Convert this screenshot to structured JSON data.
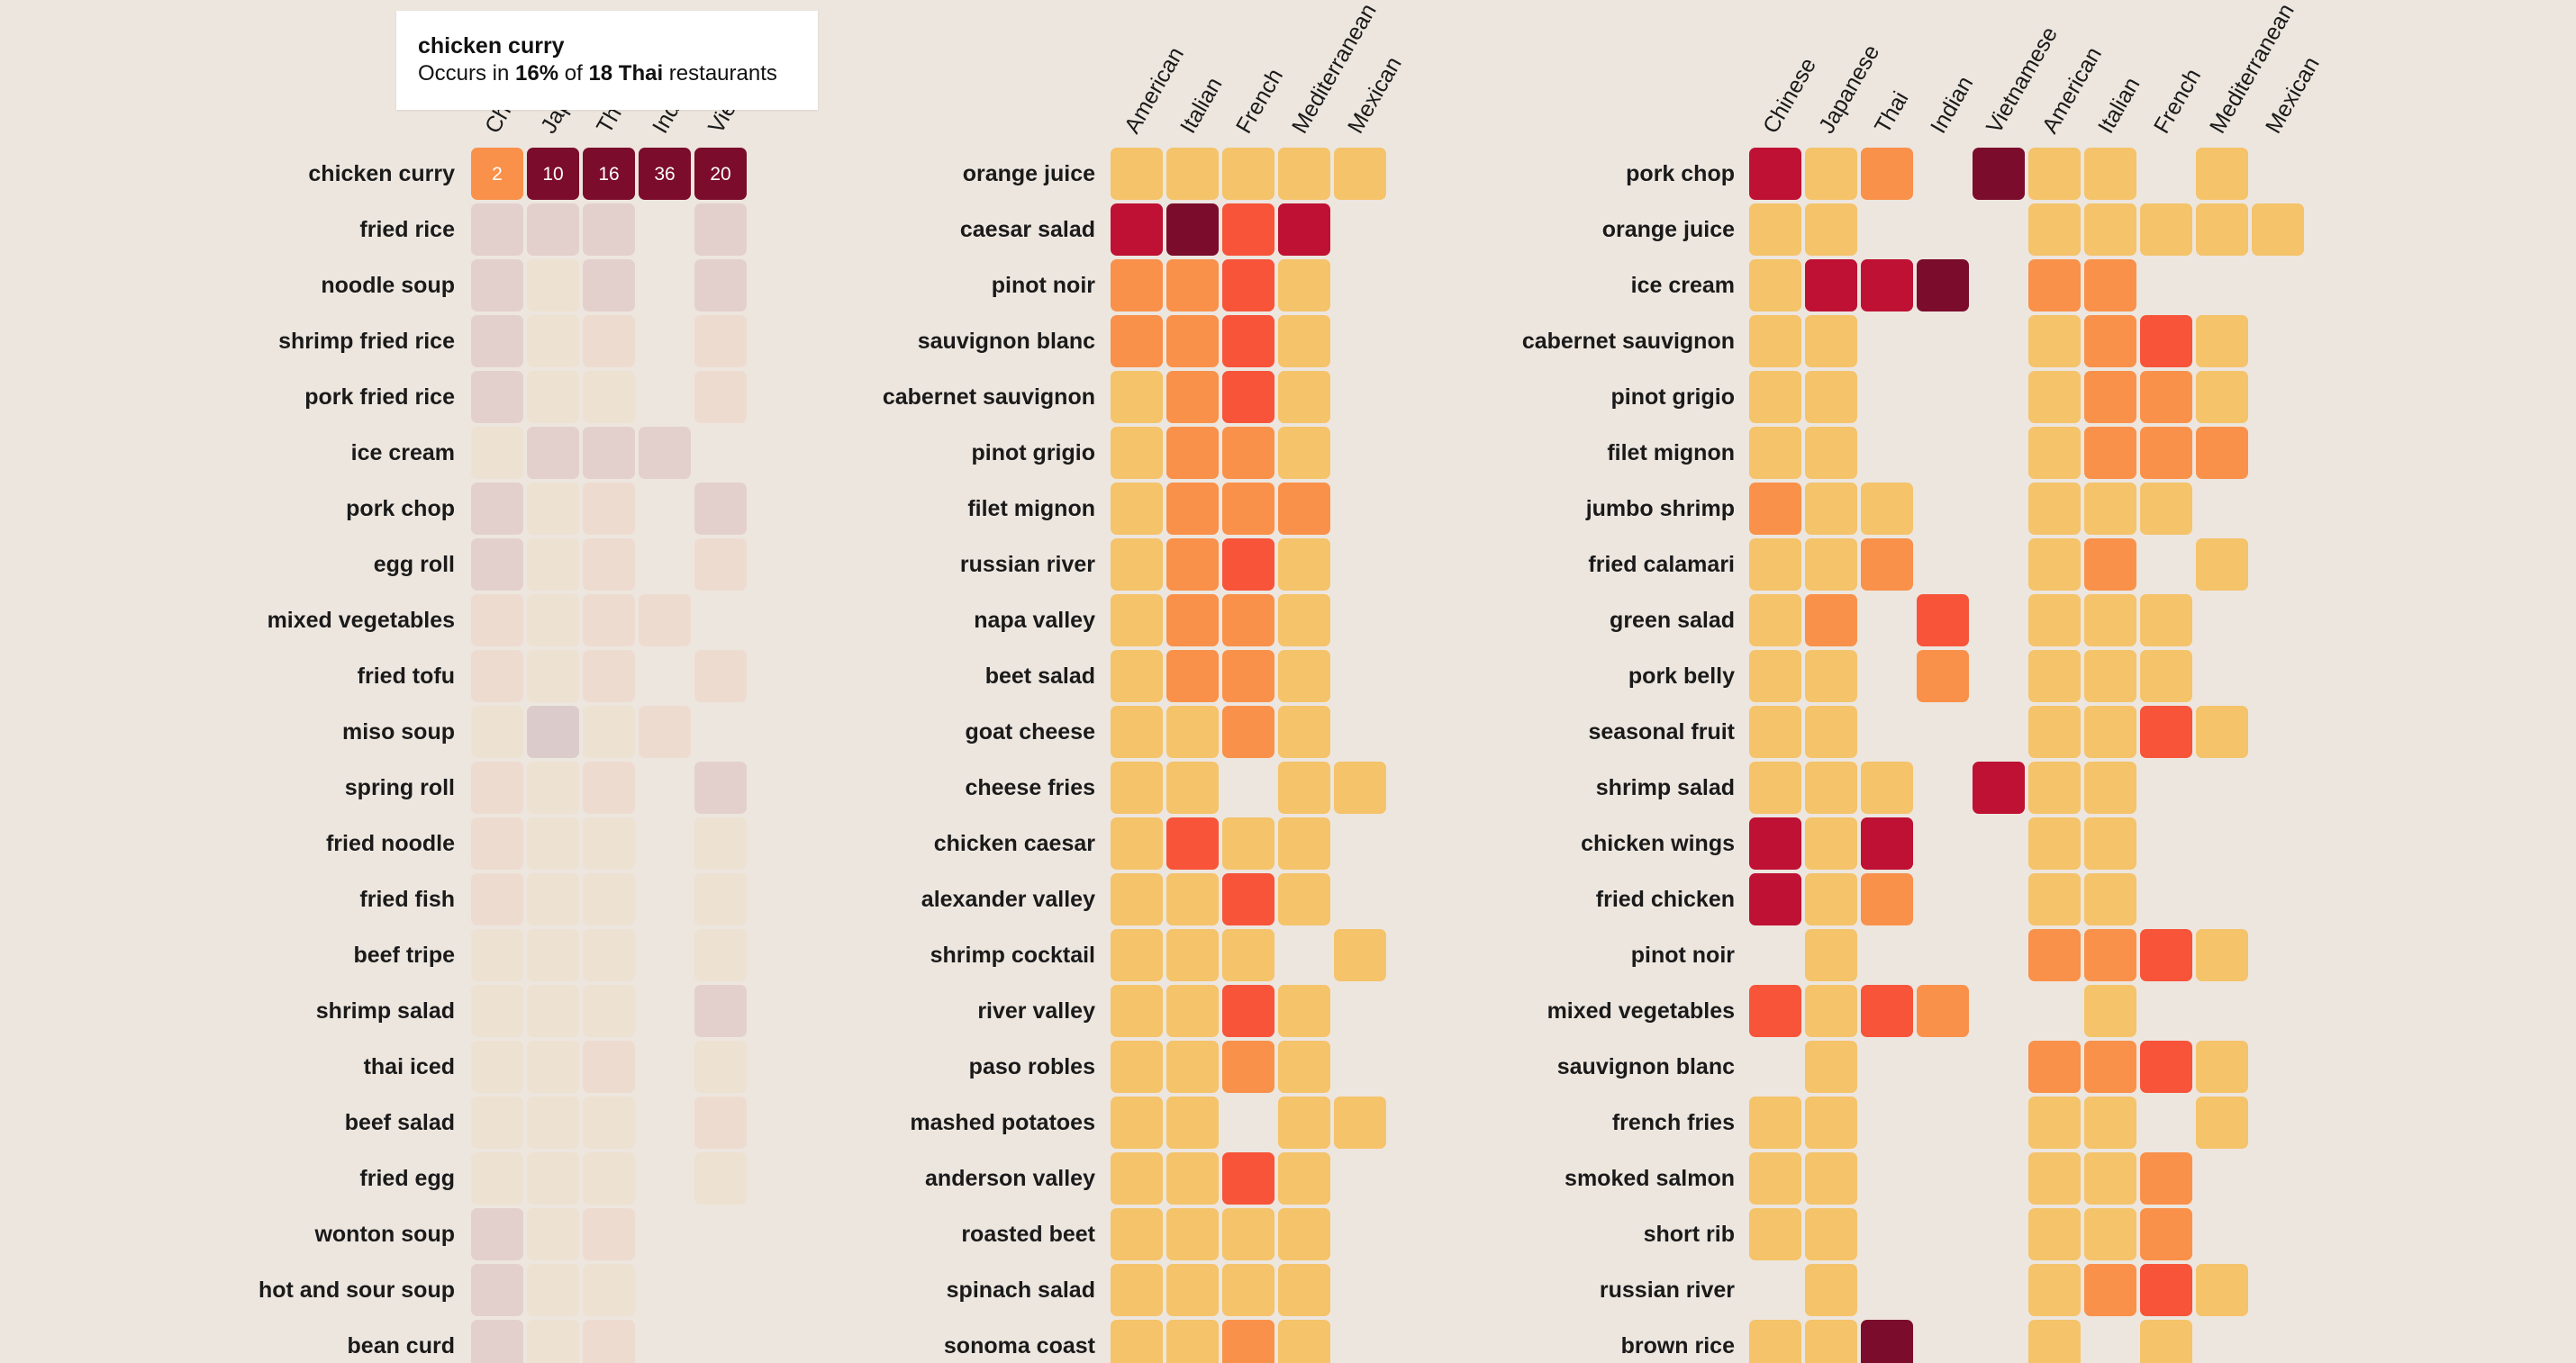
{
  "tooltip": {
    "title": "chicken curry",
    "prefix": "Occurs in ",
    "percent": "16%",
    "middle": " of ",
    "count": "18 Thai",
    "suffix": " restaurants"
  },
  "chart_data": [
    {
      "type": "heatmap",
      "columns": [
        "Chinese",
        "Japanese",
        "Thai",
        "Indian",
        "Vietnamese"
      ],
      "visible_column_labels": [
        "Ch",
        "Jap",
        "Th",
        "Ind",
        "Vie"
      ],
      "rows": [
        "chicken curry",
        "fried rice",
        "noodle soup",
        "shrimp fried rice",
        "pork fried rice",
        "ice cream",
        "pork chop",
        "egg roll",
        "mixed vegetables",
        "fried tofu",
        "miso soup",
        "spring roll",
        "fried noodle",
        "fried fish",
        "beef tripe",
        "shrimp salad",
        "thai iced",
        "beef salad",
        "fried egg",
        "wonton soup",
        "hot and sour soup",
        "bean curd"
      ],
      "cell_labels": [
        [
          "2",
          "10",
          "16",
          "36",
          "20"
        ]
      ],
      "values": [
        [
          2,
          10,
          16,
          36,
          20
        ],
        [
          3,
          3,
          3,
          null,
          3
        ],
        [
          3,
          1,
          3,
          null,
          3
        ],
        [
          3,
          1,
          2,
          null,
          2
        ],
        [
          3,
          1,
          1,
          null,
          2
        ],
        [
          1,
          3,
          3,
          3,
          null
        ],
        [
          3,
          1,
          2,
          null,
          3
        ],
        [
          3,
          1,
          2,
          null,
          2
        ],
        [
          2,
          1,
          2,
          2,
          null
        ],
        [
          2,
          1,
          2,
          null,
          2
        ],
        [
          1,
          4,
          1,
          2,
          null
        ],
        [
          2,
          1,
          2,
          null,
          3
        ],
        [
          2,
          1,
          1,
          null,
          1
        ],
        [
          2,
          1,
          1,
          null,
          1
        ],
        [
          1,
          1,
          1,
          null,
          1
        ],
        [
          1,
          1,
          1,
          null,
          3
        ],
        [
          1,
          1,
          2,
          null,
          1
        ],
        [
          1,
          1,
          1,
          null,
          2
        ],
        [
          1,
          1,
          1,
          null,
          1
        ],
        [
          3,
          1,
          2,
          null,
          null
        ],
        [
          3,
          1,
          1,
          null,
          null
        ],
        [
          3,
          1,
          2,
          null,
          null
        ]
      ],
      "dimmed": true
    },
    {
      "type": "heatmap",
      "columns": [
        "American",
        "Italian",
        "French",
        "Mediterranean",
        "Mexican"
      ],
      "rows": [
        "orange juice",
        "caesar salad",
        "pinot noir",
        "sauvignon blanc",
        "cabernet sauvignon",
        "pinot grigio",
        "filet mignon",
        "russian river",
        "napa valley",
        "beet salad",
        "goat cheese",
        "cheese fries",
        "chicken caesar",
        "alexander valley",
        "shrimp cocktail",
        "river valley",
        "paso robles",
        "mashed potatoes",
        "anderson valley",
        "roasted beet",
        "spinach salad",
        "sonoma coast"
      ],
      "values": [
        [
          1,
          1,
          1,
          1,
          1
        ],
        [
          4,
          5,
          3,
          4,
          null
        ],
        [
          2,
          2,
          3,
          1,
          null
        ],
        [
          2,
          2,
          3,
          1,
          null
        ],
        [
          1,
          2,
          3,
          1,
          null
        ],
        [
          1,
          2,
          2,
          1,
          null
        ],
        [
          1,
          2,
          2,
          2,
          null
        ],
        [
          1,
          2,
          3,
          1,
          null
        ],
        [
          1,
          2,
          2,
          1,
          null
        ],
        [
          1,
          2,
          2,
          1,
          null
        ],
        [
          1,
          1,
          2,
          1,
          null
        ],
        [
          1,
          1,
          null,
          1,
          1
        ],
        [
          1,
          3,
          1,
          1,
          null
        ],
        [
          1,
          1,
          3,
          1,
          null
        ],
        [
          1,
          1,
          1,
          null,
          1
        ],
        [
          1,
          1,
          3,
          1,
          null
        ],
        [
          1,
          1,
          2,
          1,
          null
        ],
        [
          1,
          1,
          null,
          1,
          1
        ],
        [
          1,
          1,
          3,
          1,
          null
        ],
        [
          1,
          1,
          1,
          1,
          null
        ],
        [
          1,
          1,
          1,
          1,
          null
        ],
        [
          1,
          1,
          2,
          1,
          null
        ]
      ],
      "dimmed": false
    },
    {
      "type": "heatmap",
      "columns": [
        "Chinese",
        "Japanese",
        "Thai",
        "Indian",
        "Vietnamese",
        "American",
        "Italian",
        "French",
        "Mediterranean",
        "Mexican"
      ],
      "rows": [
        "pork chop",
        "orange juice",
        "ice cream",
        "cabernet sauvignon",
        "pinot grigio",
        "filet mignon",
        "jumbo shrimp",
        "fried calamari",
        "green salad",
        "pork belly",
        "seasonal fruit",
        "shrimp salad",
        "chicken wings",
        "fried chicken",
        "pinot noir",
        "mixed vegetables",
        "sauvignon blanc",
        "french fries",
        "smoked salmon",
        "short rib",
        "russian river",
        "brown rice"
      ],
      "values": [
        [
          4,
          1,
          2,
          null,
          5,
          1,
          1,
          null,
          1,
          null
        ],
        [
          1,
          1,
          null,
          null,
          null,
          1,
          1,
          1,
          1,
          1
        ],
        [
          1,
          4,
          4,
          5,
          null,
          2,
          2,
          null,
          null,
          null
        ],
        [
          1,
          1,
          null,
          null,
          null,
          1,
          2,
          3,
          1,
          null
        ],
        [
          1,
          1,
          null,
          null,
          null,
          1,
          2,
          2,
          1,
          null
        ],
        [
          1,
          1,
          null,
          null,
          null,
          1,
          2,
          2,
          2,
          null
        ],
        [
          2,
          1,
          1,
          null,
          null,
          1,
          1,
          1,
          null,
          null
        ],
        [
          1,
          1,
          2,
          null,
          null,
          1,
          2,
          null,
          1,
          null
        ],
        [
          1,
          2,
          null,
          3,
          null,
          1,
          1,
          1,
          null,
          null
        ],
        [
          1,
          1,
          null,
          2,
          null,
          1,
          1,
          1,
          null,
          null
        ],
        [
          1,
          1,
          null,
          null,
          null,
          1,
          1,
          3,
          1,
          null
        ],
        [
          1,
          1,
          1,
          null,
          4,
          1,
          1,
          null,
          null,
          null
        ],
        [
          4,
          1,
          4,
          null,
          null,
          1,
          1,
          null,
          null,
          null
        ],
        [
          4,
          1,
          2,
          null,
          null,
          1,
          1,
          null,
          null,
          null
        ],
        [
          null,
          1,
          null,
          null,
          null,
          2,
          2,
          3,
          1,
          null
        ],
        [
          3,
          1,
          3,
          2,
          null,
          null,
          1,
          null,
          null,
          null
        ],
        [
          null,
          1,
          null,
          null,
          null,
          2,
          2,
          3,
          1,
          null
        ],
        [
          1,
          1,
          null,
          null,
          null,
          1,
          1,
          null,
          1,
          null
        ],
        [
          1,
          1,
          null,
          null,
          null,
          1,
          1,
          2,
          null,
          null
        ],
        [
          1,
          1,
          null,
          null,
          null,
          1,
          1,
          2,
          null,
          null
        ],
        [
          null,
          1,
          null,
          null,
          null,
          1,
          2,
          3,
          1,
          null
        ],
        [
          1,
          1,
          5,
          null,
          null,
          1,
          null,
          1,
          null,
          null
        ]
      ],
      "dimmed": false
    }
  ],
  "colors": {
    "background": "#ede6df",
    "level_1": "#f4c36a",
    "level_2": "#f9914a",
    "level_3": "#f7543a",
    "level_4": "#be1133",
    "level_5": "#7b0c2c",
    "dim_1": "#ede1d1",
    "dim_2": "#eedbd0",
    "dim_3": "#e3d0cc",
    "dim_4": "#dbcbcb"
  }
}
